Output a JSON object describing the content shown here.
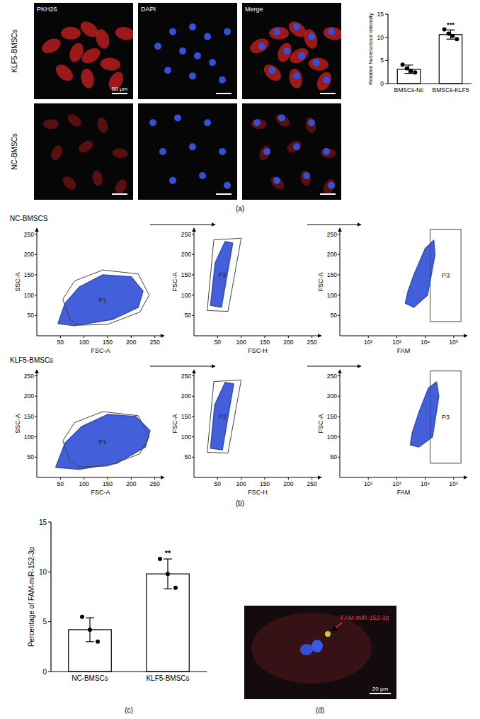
{
  "chart_data": [
    {
      "type": "bar",
      "ylabel": "Relative fluorescence intensity",
      "categories": [
        "BMSCs-Nc",
        "BMSCs-KLF5"
      ],
      "values": [
        3.1,
        10.6
      ],
      "errors": [
        0.9,
        1.0
      ],
      "points": [
        [
          4.1,
          3.3,
          2.7,
          2.4
        ],
        [
          11.7,
          10.8,
          10.3,
          9.6
        ]
      ],
      "significance": [
        null,
        "***"
      ],
      "color": "#ffffff",
      "ylim": [
        0,
        15
      ],
      "yticks": [
        0,
        5,
        10,
        15
      ]
    },
    {
      "type": "bar",
      "ylabel": "Percentage of FAM-miR-152-3p",
      "categories": [
        "NC-BMSCs",
        "KLF5-BMSCs"
      ],
      "values": [
        4.2,
        9.8
      ],
      "errors": [
        1.2,
        1.5
      ],
      "points": [
        [
          5.5,
          4.2,
          3.0
        ],
        [
          11.3,
          9.8,
          8.4
        ]
      ],
      "significance": [
        null,
        "**"
      ],
      "color": "#ffffff",
      "ylim": [
        0,
        15
      ],
      "yticks": [
        0,
        5,
        10,
        15
      ]
    }
  ],
  "figure": {
    "panel_labels": [
      "(a)",
      "(b)",
      "(c)",
      "(d)"
    ],
    "microscopy": {
      "rows": [
        "KLF5-BMSCs",
        "NC-BMSCs"
      ],
      "columns": [
        "PKH26",
        "DAPI",
        "Merge"
      ],
      "scale_bar": "50 μm"
    },
    "flow": {
      "rows": [
        {
          "title": "NC-BMSCS",
          "plots": [
            {
              "type": "scatter",
              "xlabel": "FSC-A",
              "ylabel": "SSC-A",
              "xlim": [
                0,
                270
              ],
              "ylim": [
                0,
                265
              ],
              "xticks": [
                50,
                100,
                150,
                200,
                250
              ],
              "yticks": [
                50,
                100,
                150,
                200,
                250
              ],
              "population": [
                [
                  45,
                  30
                ],
                [
                  80,
                  25
                ],
                [
                  160,
                  40
                ],
                [
                  215,
                  70
                ],
                [
                  225,
                  110
                ],
                [
                  200,
                  145
                ],
                [
                  140,
                  150
                ],
                [
                  90,
                  120
                ],
                [
                  60,
                  80
                ]
              ],
              "gate": {
                "label": "P1",
                "points": [
                  [
                    70,
                    40
                  ],
                  [
                    55,
                    90
                  ],
                  [
                    80,
                    135
                  ],
                  [
                    140,
                    162
                  ],
                  [
                    215,
                    152
                  ],
                  [
                    238,
                    100
                  ],
                  [
                    218,
                    58
                  ],
                  [
                    150,
                    28
                  ],
                  [
                    90,
                    26
                  ]
                ]
              }
            },
            {
              "type": "scatter",
              "xlabel": "FSC-H",
              "ylabel": "FSC-A",
              "xlim": [
                0,
                270
              ],
              "ylim": [
                0,
                265
              ],
              "xticks": [
                50,
                100,
                150,
                200,
                250
              ],
              "yticks": [
                50,
                100,
                150,
                200,
                250
              ],
              "population": [
                [
                  35,
                  75
                ],
                [
                  58,
                  70
                ],
                [
                  82,
                  228
                ],
                [
                  66,
                  232
                ],
                [
                  45,
                  180
                ]
              ],
              "gate": {
                "label": "P2",
                "points": [
                  [
                    28,
                    62
                  ],
                  [
                    42,
                    236
                  ],
                  [
                    100,
                    240
                  ],
                  [
                    72,
                    60
                  ]
                ]
              }
            },
            {
              "type": "scatter",
              "log": "x",
              "xlabel": "FAM",
              "ylabel": "FSC-A",
              "xlim": [
                10,
                300000
              ],
              "ylim": [
                0,
                265
              ],
              "xticks": [
                {
                  "value": 100,
                  "label": "10²"
                },
                {
                  "value": 1000,
                  "label": "10³"
                },
                {
                  "value": 10000,
                  "label": "10⁴"
                },
                {
                  "value": 100000,
                  "label": "10⁵"
                }
              ],
              "yticks": [
                50,
                100,
                150,
                200,
                250
              ],
              "population": [
                [
                  2000,
                  80
                ],
                [
                  4000,
                  70
                ],
                [
                  12000,
                  100
                ],
                [
                  22000,
                  200
                ],
                [
                  20000,
                  235
                ],
                [
                  10000,
                  215
                ],
                [
                  4000,
                  150
                ],
                [
                  2500,
                  110
                ]
              ],
              "gate": {
                "label": "P3",
                "points": [
                  [
                    15000,
                    35
                  ],
                  [
                    180000,
                    35
                  ],
                  [
                    180000,
                    262
                  ],
                  [
                    15000,
                    262
                  ]
                ]
              }
            }
          ]
        },
        {
          "title": "KLF5-BMSCs",
          "plots": [
            {
              "type": "scatter",
              "xlabel": "FSC-A",
              "ylabel": "SSC-A",
              "xlim": [
                0,
                270
              ],
              "ylim": [
                0,
                265
              ],
              "xticks": [
                50,
                100,
                150,
                200,
                250
              ],
              "yticks": [
                50,
                100,
                150,
                200,
                250
              ],
              "population": [
                [
                  40,
                  25
                ],
                [
                  90,
                  20
                ],
                [
                  170,
                  35
                ],
                [
                  230,
                  75
                ],
                [
                  240,
                  115
                ],
                [
                  210,
                  150
                ],
                [
                  150,
                  155
                ],
                [
                  95,
                  125
                ],
                [
                  60,
                  85
                ]
              ],
              "gate": {
                "label": "P1",
                "points": [
                  [
                    70,
                    40
                  ],
                  [
                    55,
                    90
                  ],
                  [
                    80,
                    135
                  ],
                  [
                    140,
                    162
                  ],
                  [
                    215,
                    152
                  ],
                  [
                    238,
                    100
                  ],
                  [
                    218,
                    58
                  ],
                  [
                    150,
                    28
                  ],
                  [
                    90,
                    26
                  ]
                ]
              }
            },
            {
              "type": "scatter",
              "xlabel": "FSC-H",
              "ylabel": "FSC-A",
              "xlim": [
                0,
                270
              ],
              "ylim": [
                0,
                265
              ],
              "xticks": [
                50,
                100,
                150,
                200,
                250
              ],
              "yticks": [
                50,
                100,
                150,
                200,
                250
              ],
              "population": [
                [
                  35,
                  72
                ],
                [
                  60,
                  68
                ],
                [
                  84,
                  230
                ],
                [
                  66,
                  234
                ],
                [
                  44,
                  178
                ]
              ],
              "gate": {
                "label": "P2",
                "points": [
                  [
                    28,
                    62
                  ],
                  [
                    42,
                    236
                  ],
                  [
                    100,
                    240
                  ],
                  [
                    72,
                    60
                  ]
                ]
              }
            },
            {
              "type": "scatter",
              "log": "x",
              "xlabel": "FAM",
              "ylabel": "FSC-A",
              "xlim": [
                10,
                300000
              ],
              "ylim": [
                0,
                265
              ],
              "xticks": [
                {
                  "value": 100,
                  "label": "10²"
                },
                {
                  "value": 1000,
                  "label": "10³"
                },
                {
                  "value": 10000,
                  "label": "10⁴"
                },
                {
                  "value": 100000,
                  "label": "10⁵"
                }
              ],
              "yticks": [
                50,
                100,
                150,
                200,
                250
              ],
              "population": [
                [
                  3000,
                  80
                ],
                [
                  6000,
                  75
                ],
                [
                  18000,
                  100
                ],
                [
                  30000,
                  200
                ],
                [
                  25000,
                  235
                ],
                [
                  13000,
                  220
                ],
                [
                  6000,
                  160
                ],
                [
                  3500,
                  110
                ]
              ],
              "gate": {
                "label": "P3",
                "points": [
                  [
                    15000,
                    35
                  ],
                  [
                    180000,
                    35
                  ],
                  [
                    180000,
                    262
                  ],
                  [
                    15000,
                    262
                  ]
                ]
              }
            }
          ]
        }
      ]
    },
    "image_d": {
      "label": "FAM-miR-152-3p",
      "scale_bar": "20 μm"
    }
  }
}
